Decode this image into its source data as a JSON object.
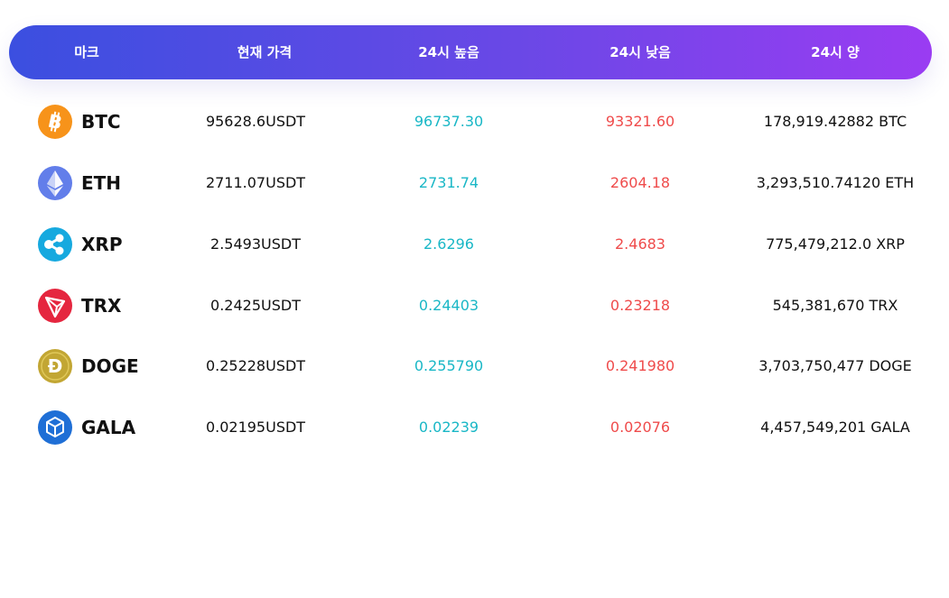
{
  "header": {
    "col_mark": "마크",
    "col_price": "현재 가격",
    "col_high": "24시 높음",
    "col_low": "24시 낮음",
    "col_volume": "24시 양"
  },
  "colors": {
    "header_gradient": [
      "#3b4fe0",
      "#9a3cf2"
    ],
    "high": "#19b7c6",
    "low": "#ef4b4b"
  },
  "coins": [
    {
      "symbol": "BTC",
      "icon": "bitcoin-icon",
      "price": "95628.6USDT",
      "high": "96737.30",
      "low": "93321.60",
      "volume": "178,919.42882 BTC"
    },
    {
      "symbol": "ETH",
      "icon": "ethereum-icon",
      "price": "2711.07USDT",
      "high": "2731.74",
      "low": "2604.18",
      "volume": "3,293,510.74120 ETH"
    },
    {
      "symbol": "XRP",
      "icon": "xrp-icon",
      "price": "2.5493USDT",
      "high": "2.6296",
      "low": "2.4683",
      "volume": "775,479,212.0 XRP"
    },
    {
      "symbol": "TRX",
      "icon": "tron-icon",
      "price": "0.2425USDT",
      "high": "0.24403",
      "low": "0.23218",
      "volume": "545,381,670 TRX"
    },
    {
      "symbol": "DOGE",
      "icon": "dogecoin-icon",
      "price": "0.25228USDT",
      "high": "0.255790",
      "low": "0.241980",
      "volume": "3,703,750,477 DOGE"
    },
    {
      "symbol": "GALA",
      "icon": "gala-icon",
      "price": "0.02195USDT",
      "high": "0.02239",
      "low": "0.02076",
      "volume": "4,457,549,201 GALA"
    }
  ]
}
